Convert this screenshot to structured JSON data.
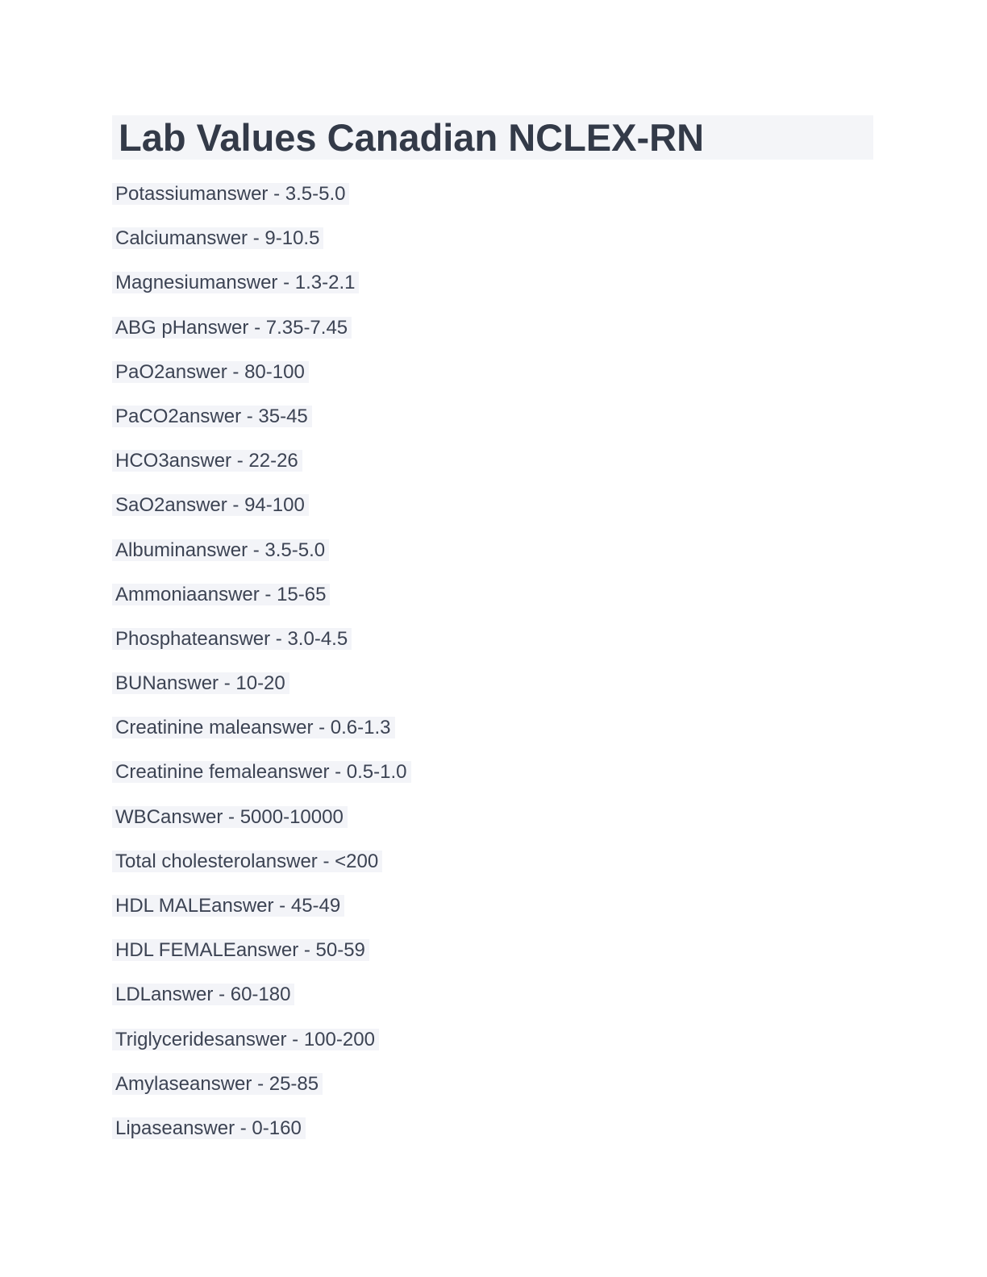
{
  "document": {
    "title": "Lab Values Canadian NCLEX-RN",
    "lab_values": [
      {
        "term": "Potassium",
        "range": "3.5-5.0",
        "display": "Potassiumanswer - 3.5-5.0"
      },
      {
        "term": "Calcium",
        "range": "9-10.5",
        "display": "Calciumanswer - 9-10.5"
      },
      {
        "term": "Magnesium",
        "range": "1.3-2.1",
        "display": "Magnesiumanswer - 1.3-2.1"
      },
      {
        "term": "ABG pH",
        "range": "7.35-7.45",
        "display": "ABG pHanswer - 7.35-7.45"
      },
      {
        "term": "PaO2",
        "range": "80-100",
        "display": "PaO2answer - 80-100"
      },
      {
        "term": "PaCO2",
        "range": "35-45",
        "display": "PaCO2answer - 35-45"
      },
      {
        "term": "HCO3",
        "range": "22-26",
        "display": "HCO3answer - 22-26"
      },
      {
        "term": "SaO2",
        "range": "94-100",
        "display": "SaO2answer - 94-100"
      },
      {
        "term": "Albumin",
        "range": "3.5-5.0",
        "display": "Albuminanswer - 3.5-5.0"
      },
      {
        "term": "Ammonia",
        "range": "15-65",
        "display": "Ammoniaanswer - 15-65"
      },
      {
        "term": "Phosphate",
        "range": "3.0-4.5",
        "display": "Phosphateanswer - 3.0-4.5"
      },
      {
        "term": "BUN",
        "range": "10-20",
        "display": "BUNanswer - 10-20"
      },
      {
        "term": "Creatinine male",
        "range": "0.6-1.3",
        "display": "Creatinine maleanswer - 0.6-1.3"
      },
      {
        "term": "Creatinine female",
        "range": "0.5-1.0",
        "display": "Creatinine femaleanswer - 0.5-1.0"
      },
      {
        "term": "WBC",
        "range": "5000-10000",
        "display": "WBCanswer - 5000-10000"
      },
      {
        "term": "Total cholesterol",
        "range": "<200",
        "display": "Total cholesterolanswer - <200"
      },
      {
        "term": "HDL MALE",
        "range": "45-49",
        "display": "HDL MALEanswer - 45-49"
      },
      {
        "term": "HDL FEMALE",
        "range": "50-59",
        "display": "HDL FEMALEanswer - 50-59"
      },
      {
        "term": "LDL",
        "range": "60-180",
        "display": "LDLanswer - 60-180"
      },
      {
        "term": "Triglycerides",
        "range": "100-200",
        "display": "Triglyceridesanswer - 100-200"
      },
      {
        "term": "Amylase",
        "range": "25-85",
        "display": "Amylaseanswer - 25-85"
      },
      {
        "term": "Lipase",
        "range": "0-160",
        "display": "Lipaseanswer - 0-160"
      }
    ]
  },
  "colors": {
    "page_background": "#ffffff",
    "title_text": "#333a48",
    "body_text": "#3c4353",
    "line_highlight": "#f3f4f8",
    "title_highlight": "#f4f5f8"
  }
}
